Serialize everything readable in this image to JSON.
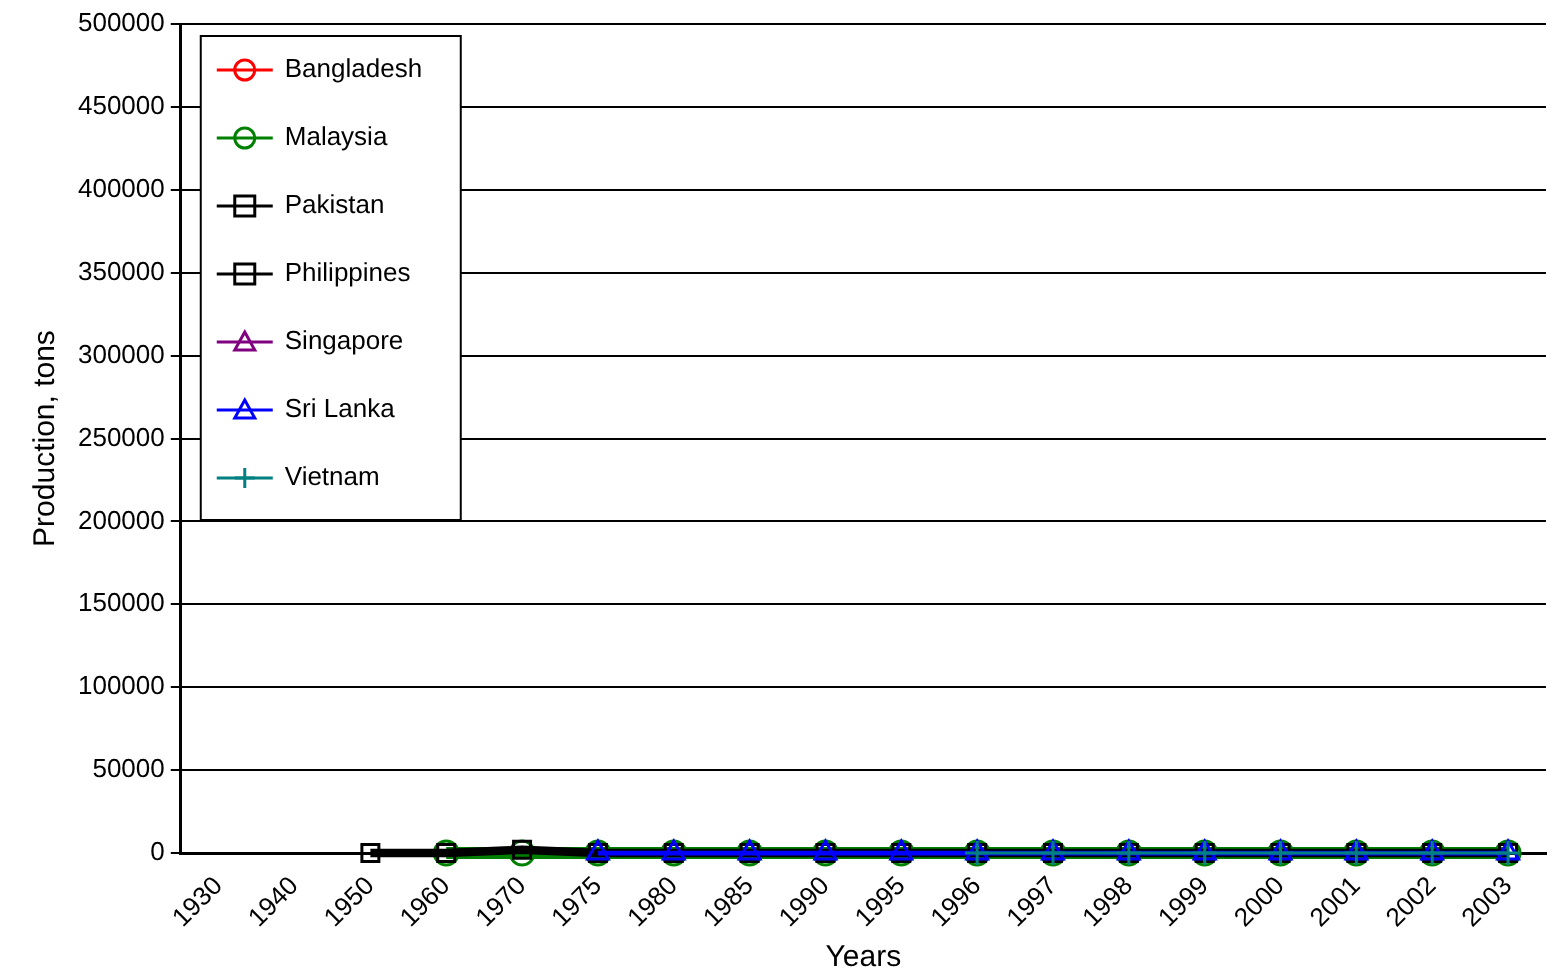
{
  "chart_data": {
    "type": "line",
    "xlabel": "Years",
    "ylabel": "Production, tons",
    "categories": [
      "1930",
      "1940",
      "1950",
      "1960",
      "1970",
      "1975",
      "1980",
      "1985",
      "1990",
      "1995",
      "1996",
      "1997",
      "1998",
      "1999",
      "2000",
      "2001",
      "2002",
      "2003"
    ],
    "series": [
      {
        "name": "Bangladesh",
        "color": "#ff0000",
        "marker": "circle",
        "values": [
          null,
          null,
          null,
          null,
          null,
          null,
          null,
          null,
          null,
          null,
          null,
          null,
          null,
          null,
          null,
          null,
          null,
          null
        ]
      },
      {
        "name": "Malaysia",
        "color": "#008000",
        "marker": "circle",
        "values": [
          null,
          null,
          null,
          0,
          0,
          0,
          0,
          0,
          0,
          0,
          0,
          0,
          0,
          0,
          0,
          0,
          0,
          0
        ]
      },
      {
        "name": "Pakistan",
        "color": "#000000",
        "marker": "square",
        "values": [
          null,
          null,
          null,
          null,
          null,
          null,
          null,
          null,
          null,
          null,
          null,
          null,
          null,
          null,
          null,
          null,
          null,
          null
        ]
      },
      {
        "name": "Philippines",
        "color": "#000000",
        "marker": "square",
        "values": [
          null,
          null,
          0,
          0,
          2000,
          0,
          0,
          0,
          0,
          0,
          0,
          0,
          0,
          0,
          0,
          0,
          0,
          0
        ]
      },
      {
        "name": "Singapore",
        "color": "#800080",
        "marker": "triangle",
        "values": [
          null,
          null,
          null,
          null,
          null,
          null,
          null,
          null,
          null,
          null,
          null,
          null,
          null,
          null,
          null,
          null,
          null,
          null
        ]
      },
      {
        "name": "Sri Lanka",
        "color": "#0000ff",
        "marker": "triangle",
        "values": [
          null,
          null,
          null,
          null,
          null,
          0,
          0,
          0,
          0,
          0,
          0,
          0,
          0,
          0,
          0,
          0,
          0,
          0
        ]
      },
      {
        "name": "Vietnam",
        "color": "#008080",
        "marker": "cross",
        "values": [
          null,
          null,
          null,
          null,
          null,
          null,
          null,
          null,
          null,
          null,
          0,
          0,
          0,
          0,
          0,
          0,
          0,
          0
        ]
      }
    ],
    "ylim": [
      0,
      500000
    ],
    "yticks": [
      0,
      50000,
      100000,
      150000,
      200000,
      250000,
      300000,
      350000,
      400000,
      450000,
      500000
    ],
    "grid": "y",
    "legend": "top left"
  }
}
